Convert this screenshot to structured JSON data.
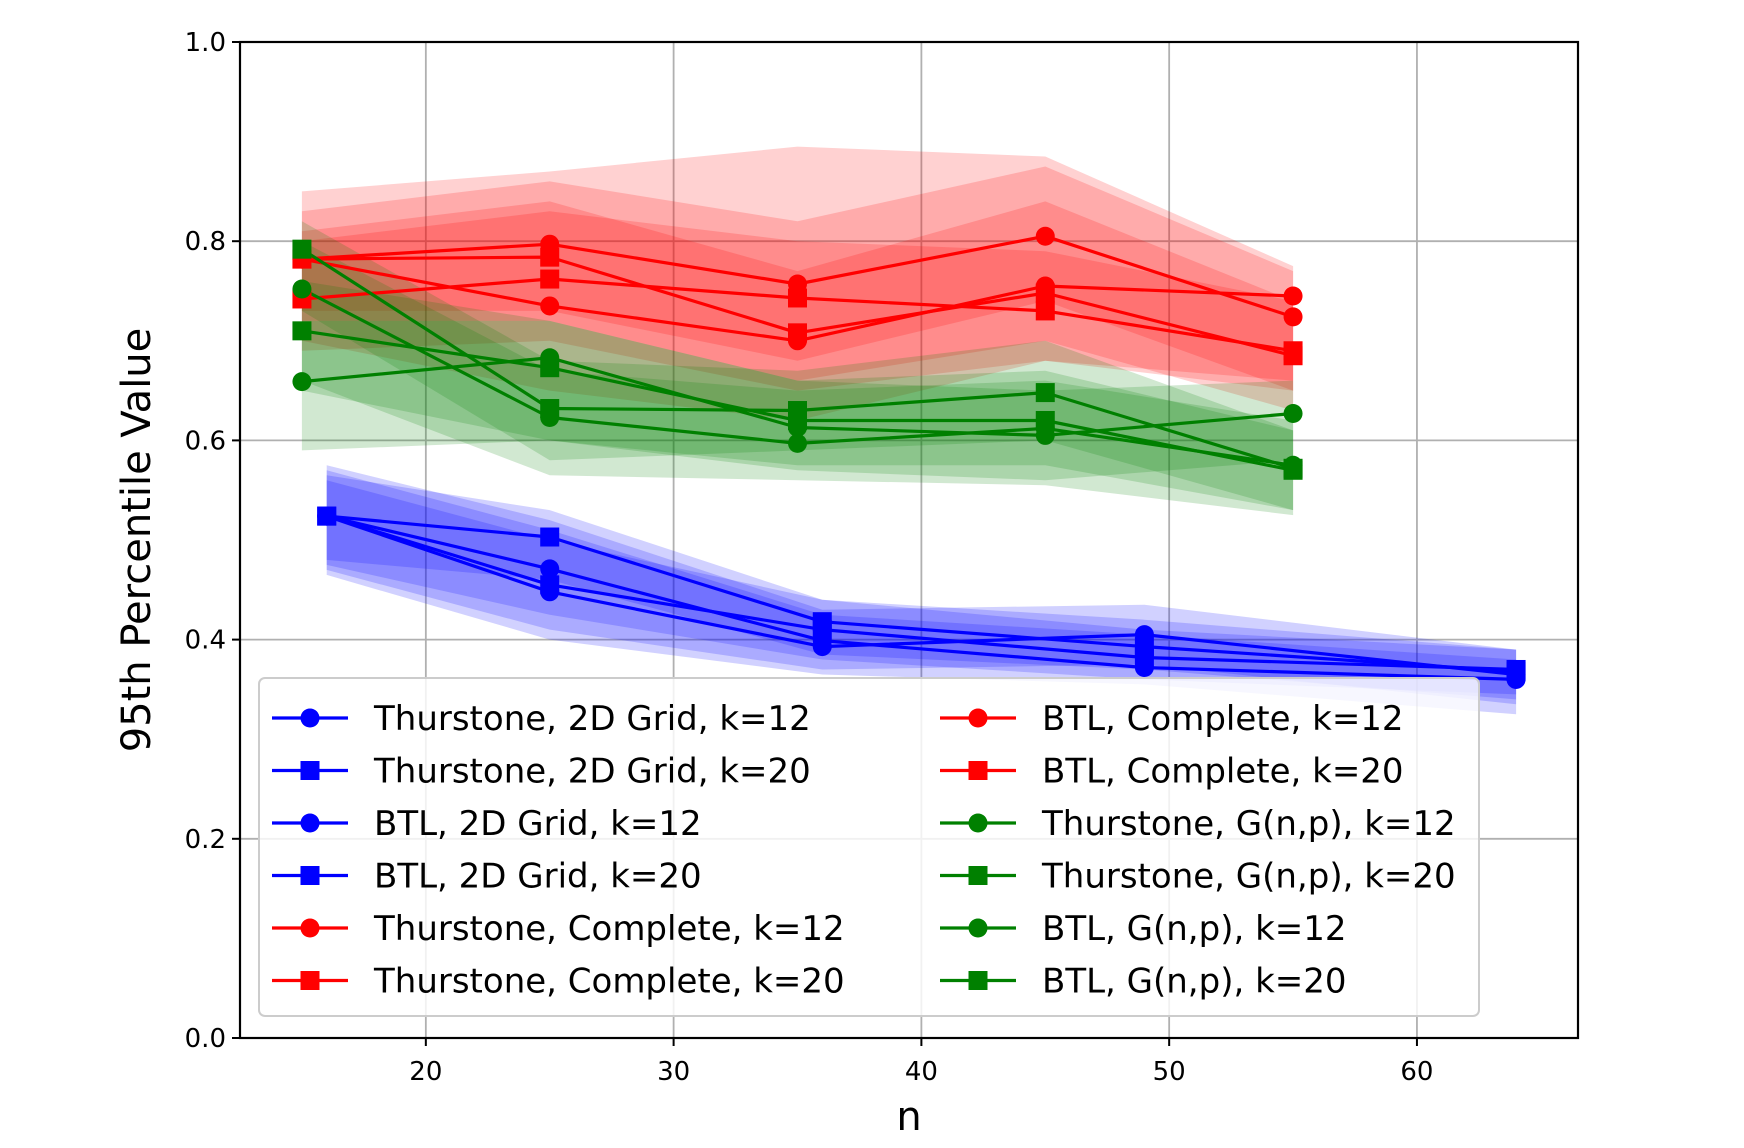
{
  "chart_data": {
    "type": "line",
    "title": "",
    "xlabel": "n",
    "ylabel": "95th Percentile Value",
    "xlim": [
      12.5,
      66.5
    ],
    "ylim": [
      0.0,
      1.0
    ],
    "xticks": [
      20,
      30,
      40,
      50,
      60
    ],
    "yticks": [
      0.0,
      0.2,
      0.4,
      0.6,
      0.8,
      1.0
    ],
    "ytick_labels": [
      "0.0",
      "0.2",
      "0.4",
      "0.6",
      "0.8",
      "1.0"
    ],
    "grid": true,
    "legend_location": "lower-center",
    "legend_columns": 2,
    "colors": {
      "blue": "#0000ff",
      "red": "#ff0000",
      "green": "#008000"
    },
    "series": [
      {
        "name": "Thurstone, 2D Grid, k=12",
        "color": "#0000ff",
        "marker": "circle",
        "x": [
          16,
          25,
          36,
          49,
          64
        ],
        "y": [
          0.524,
          0.448,
          0.393,
          0.405,
          0.365
        ],
        "lower": [
          0.47,
          0.41,
          0.37,
          0.375,
          0.335
        ],
        "upper": [
          0.575,
          0.52,
          0.43,
          0.435,
          0.39
        ]
      },
      {
        "name": "Thurstone, 2D Grid, k=20",
        "color": "#0000ff",
        "marker": "square",
        "x": [
          16,
          25,
          36,
          49,
          64
        ],
        "y": [
          0.524,
          0.503,
          0.418,
          0.393,
          0.368
        ],
        "lower": [
          0.48,
          0.46,
          0.385,
          0.37,
          0.34
        ],
        "upper": [
          0.565,
          0.53,
          0.44,
          0.42,
          0.39
        ]
      },
      {
        "name": "BTL, 2D Grid, k=12",
        "color": "#0000ff",
        "marker": "circle",
        "x": [
          16,
          25,
          36,
          49,
          64
        ],
        "y": [
          0.524,
          0.471,
          0.399,
          0.372,
          0.36
        ],
        "lower": [
          0.465,
          0.4,
          0.365,
          0.355,
          0.325
        ],
        "upper": [
          0.57,
          0.51,
          0.425,
          0.405,
          0.38
        ]
      },
      {
        "name": "BTL, 2D Grid, k=20",
        "color": "#0000ff",
        "marker": "square",
        "x": [
          16,
          25,
          36,
          49,
          64
        ],
        "y": [
          0.524,
          0.455,
          0.41,
          0.382,
          0.37
        ],
        "lower": [
          0.475,
          0.425,
          0.38,
          0.36,
          0.345
        ],
        "upper": [
          0.56,
          0.5,
          0.44,
          0.41,
          0.39
        ]
      },
      {
        "name": "Thurstone, Complete, k=12",
        "color": "#ff0000",
        "marker": "circle",
        "x": [
          15,
          25,
          35,
          45,
          55
        ],
        "y": [
          0.782,
          0.797,
          0.757,
          0.805,
          0.724
        ],
        "lower": [
          0.73,
          0.73,
          0.68,
          0.74,
          0.65
        ],
        "upper": [
          0.83,
          0.86,
          0.82,
          0.875,
          0.77
        ]
      },
      {
        "name": "Thurstone, Complete, k=20",
        "color": "#ff0000",
        "marker": "square",
        "x": [
          15,
          25,
          35,
          45,
          55
        ],
        "y": [
          0.742,
          0.762,
          0.743,
          0.73,
          0.69
        ],
        "lower": [
          0.69,
          0.7,
          0.65,
          0.68,
          0.65
        ],
        "upper": [
          0.8,
          0.83,
          0.8,
          0.79,
          0.74
        ]
      },
      {
        "name": "BTL, Complete, k=12",
        "color": "#ff0000",
        "marker": "circle",
        "x": [
          15,
          25,
          35,
          45,
          55
        ],
        "y": [
          0.782,
          0.735,
          0.7,
          0.755,
          0.745
        ],
        "lower": [
          0.7,
          0.65,
          0.62,
          0.68,
          0.66
        ],
        "upper": [
          0.85,
          0.87,
          0.895,
          0.885,
          0.775
        ]
      },
      {
        "name": "BTL, Complete, k=20",
        "color": "#ff0000",
        "marker": "square",
        "x": [
          15,
          25,
          35,
          45,
          55
        ],
        "y": [
          0.782,
          0.784,
          0.708,
          0.748,
          0.685
        ],
        "lower": [
          0.72,
          0.72,
          0.66,
          0.7,
          0.63
        ],
        "upper": [
          0.81,
          0.84,
          0.77,
          0.84,
          0.74
        ]
      },
      {
        "name": "Thurstone, G(n,p), k=12",
        "color": "#008000",
        "marker": "circle",
        "x": [
          15,
          25,
          35,
          45,
          55
        ],
        "y": [
          0.659,
          0.683,
          0.613,
          0.605,
          0.627
        ],
        "lower": [
          0.59,
          0.6,
          0.57,
          0.56,
          0.58
        ],
        "upper": [
          0.72,
          0.72,
          0.66,
          0.65,
          0.66
        ]
      },
      {
        "name": "Thurstone, G(n,p), k=20",
        "color": "#008000",
        "marker": "square",
        "x": [
          15,
          25,
          35,
          45,
          55
        ],
        "y": [
          0.792,
          0.632,
          0.63,
          0.648,
          0.572
        ],
        "lower": [
          0.73,
          0.58,
          0.59,
          0.6,
          0.53
        ],
        "upper": [
          0.82,
          0.68,
          0.67,
          0.7,
          0.61
        ]
      },
      {
        "name": "BTL, G(n,p), k=12",
        "color": "#008000",
        "marker": "circle",
        "x": [
          15,
          25,
          35,
          45,
          55
        ],
        "y": [
          0.752,
          0.623,
          0.597,
          0.612,
          0.575
        ],
        "lower": [
          0.66,
          0.565,
          0.56,
          0.555,
          0.525
        ],
        "upper": [
          0.8,
          0.67,
          0.65,
          0.66,
          0.62
        ]
      },
      {
        "name": "BTL, G(n,p), k=20",
        "color": "#008000",
        "marker": "square",
        "x": [
          15,
          25,
          35,
          45,
          55
        ],
        "y": [
          0.71,
          0.673,
          0.62,
          0.62,
          0.57
        ],
        "lower": [
          0.65,
          0.6,
          0.575,
          0.575,
          0.53
        ],
        "upper": [
          0.76,
          0.72,
          0.66,
          0.67,
          0.61
        ]
      }
    ]
  }
}
